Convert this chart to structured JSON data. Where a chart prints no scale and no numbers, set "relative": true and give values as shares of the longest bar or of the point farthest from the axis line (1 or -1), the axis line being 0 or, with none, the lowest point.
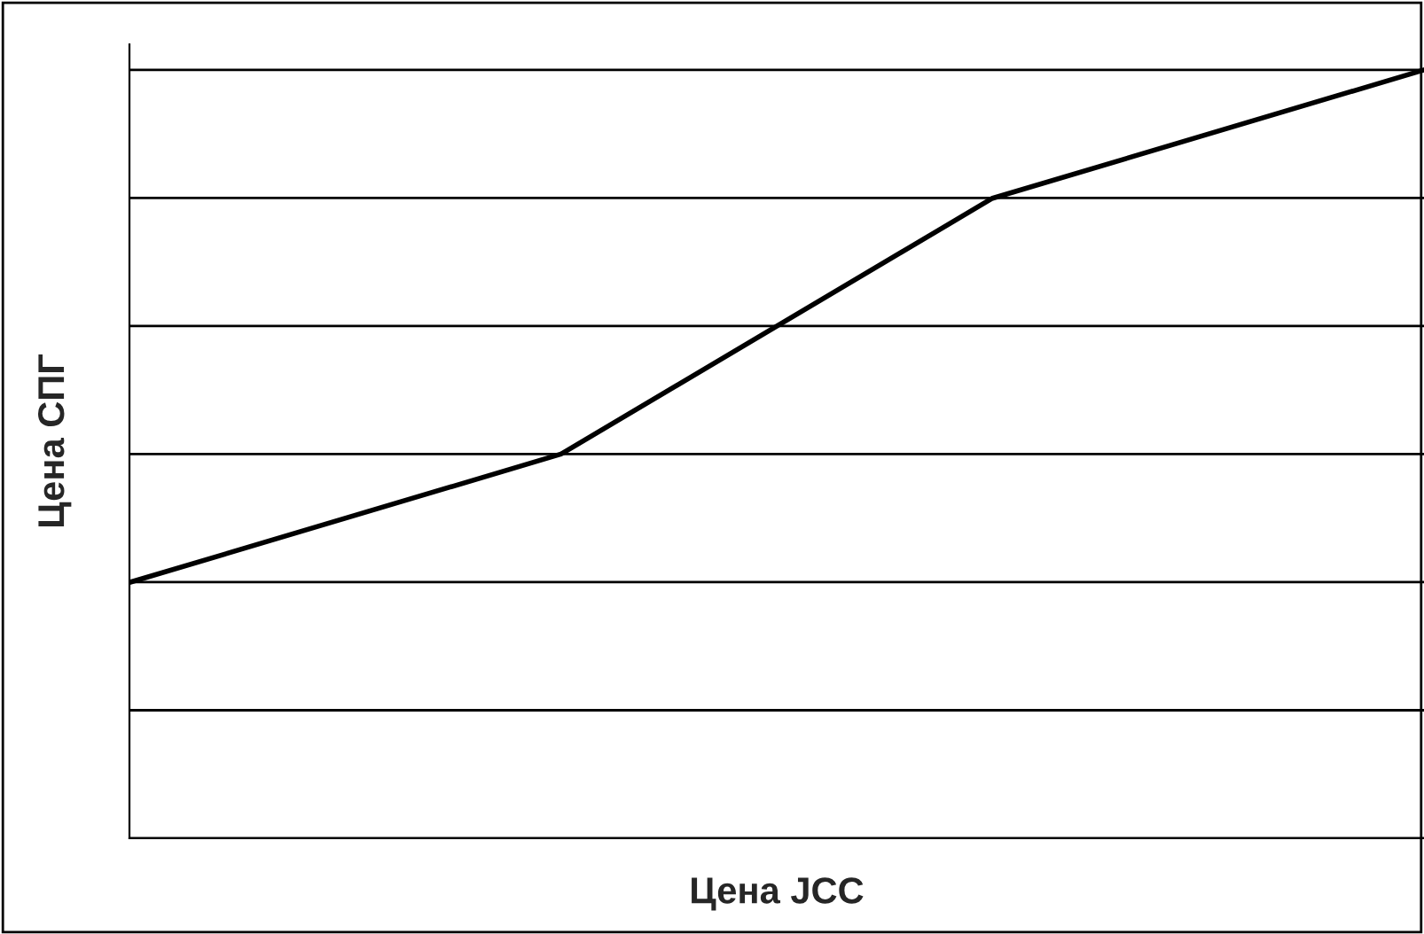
{
  "chart_data": {
    "type": "line",
    "xlabel": "Цена JCC",
    "ylabel": "Цена СПГ",
    "relative": true,
    "categories": [
      null,
      null,
      null,
      null
    ],
    "series": [
      {
        "color": "#000000",
        "values": [
          0.333,
          0.5,
          0.833,
          1.0
        ]
      }
    ],
    "grid": "y",
    "marker": "none",
    "line_style": "solid",
    "legend": false
  }
}
